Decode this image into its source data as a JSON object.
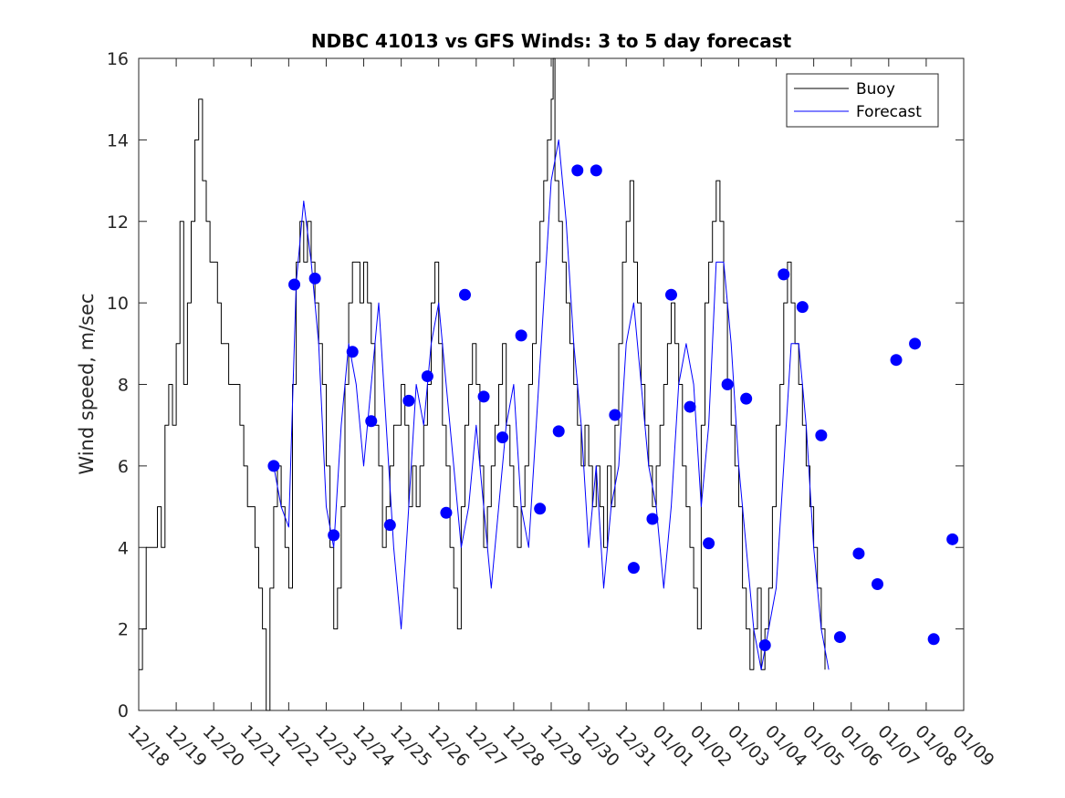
{
  "chart_data": {
    "type": "line",
    "title": "NDBC 41013 vs GFS Winds: 3 to 5 day forecast",
    "xlabel": "",
    "ylabel": "Wind speed, m/sec",
    "xlim": [
      0,
      22
    ],
    "ylim": [
      0,
      16
    ],
    "yticks": [
      0,
      2,
      4,
      6,
      8,
      10,
      12,
      14,
      16
    ],
    "x_ticks": [
      0,
      1,
      2,
      3,
      4,
      5,
      6,
      7,
      8,
      9,
      10,
      11,
      12,
      13,
      14,
      15,
      16,
      17,
      18,
      19,
      20,
      21,
      22
    ],
    "x_tick_labels": [
      "12/18",
      "12/19",
      "12/20",
      "12/21",
      "12/22",
      "12/23",
      "12/24",
      "12/25",
      "12/26",
      "12/27",
      "12/28",
      "12/29",
      "12/30",
      "12/31",
      "01/01",
      "01/02",
      "01/03",
      "01/04",
      "01/05",
      "01/06",
      "01/07",
      "01/08",
      "01/09"
    ],
    "legend": {
      "position": "top-right",
      "entries": [
        {
          "name": "Buoy",
          "color": "#000000"
        },
        {
          "name": "Forecast",
          "color": "#0000ff"
        }
      ]
    },
    "series": [
      {
        "name": "Buoy",
        "color": "#000000",
        "style": "step",
        "points": [
          [
            0.0,
            1
          ],
          [
            0.1,
            2
          ],
          [
            0.2,
            4
          ],
          [
            0.4,
            4
          ],
          [
            0.5,
            5
          ],
          [
            0.6,
            4
          ],
          [
            0.7,
            7
          ],
          [
            0.8,
            8
          ],
          [
            0.9,
            7
          ],
          [
            1.0,
            9
          ],
          [
            1.1,
            12
          ],
          [
            1.2,
            8
          ],
          [
            1.3,
            10
          ],
          [
            1.4,
            12
          ],
          [
            1.5,
            14
          ],
          [
            1.6,
            15
          ],
          [
            1.7,
            13
          ],
          [
            1.8,
            12
          ],
          [
            1.9,
            11
          ],
          [
            2.0,
            11
          ],
          [
            2.1,
            10
          ],
          [
            2.2,
            9
          ],
          [
            2.3,
            9
          ],
          [
            2.4,
            8
          ],
          [
            2.5,
            8
          ],
          [
            2.6,
            8
          ],
          [
            2.7,
            7
          ],
          [
            2.8,
            6
          ],
          [
            2.9,
            5
          ],
          [
            3.0,
            5
          ],
          [
            3.1,
            4
          ],
          [
            3.2,
            3
          ],
          [
            3.3,
            2
          ],
          [
            3.4,
            0
          ],
          [
            3.5,
            3
          ],
          [
            3.6,
            5
          ],
          [
            3.7,
            6
          ],
          [
            3.8,
            5
          ],
          [
            3.9,
            4
          ],
          [
            4.0,
            3
          ],
          [
            4.1,
            8
          ],
          [
            4.2,
            11
          ],
          [
            4.3,
            12
          ],
          [
            4.4,
            11
          ],
          [
            4.5,
            12
          ],
          [
            4.6,
            11
          ],
          [
            4.7,
            10
          ],
          [
            4.8,
            9
          ],
          [
            4.9,
            8
          ],
          [
            5.0,
            6
          ],
          [
            5.1,
            4
          ],
          [
            5.2,
            2
          ],
          [
            5.3,
            3
          ],
          [
            5.4,
            5
          ],
          [
            5.5,
            8
          ],
          [
            5.6,
            10
          ],
          [
            5.7,
            11
          ],
          [
            5.8,
            11
          ],
          [
            5.9,
            10
          ],
          [
            6.0,
            11
          ],
          [
            6.1,
            10
          ],
          [
            6.2,
            9
          ],
          [
            6.3,
            7
          ],
          [
            6.4,
            6
          ],
          [
            6.5,
            4
          ],
          [
            6.6,
            5
          ],
          [
            6.7,
            6
          ],
          [
            6.8,
            7
          ],
          [
            6.9,
            7
          ],
          [
            7.0,
            8
          ],
          [
            7.1,
            7
          ],
          [
            7.2,
            5
          ],
          [
            7.3,
            6
          ],
          [
            7.4,
            5
          ],
          [
            7.5,
            6
          ],
          [
            7.6,
            7
          ],
          [
            7.7,
            8
          ],
          [
            7.8,
            10
          ],
          [
            7.9,
            11
          ],
          [
            8.0,
            9
          ],
          [
            8.1,
            7
          ],
          [
            8.2,
            6
          ],
          [
            8.3,
            4
          ],
          [
            8.4,
            3
          ],
          [
            8.5,
            2
          ],
          [
            8.6,
            5
          ],
          [
            8.7,
            7
          ],
          [
            8.8,
            8
          ],
          [
            8.9,
            9
          ],
          [
            9.0,
            8
          ],
          [
            9.1,
            6
          ],
          [
            9.2,
            4
          ],
          [
            9.3,
            5
          ],
          [
            9.4,
            6
          ],
          [
            9.5,
            7
          ],
          [
            9.6,
            8
          ],
          [
            9.7,
            9
          ],
          [
            9.8,
            7
          ],
          [
            9.9,
            6
          ],
          [
            10.0,
            5
          ],
          [
            10.1,
            4
          ],
          [
            10.2,
            5
          ],
          [
            10.3,
            6
          ],
          [
            10.4,
            8
          ],
          [
            10.5,
            9
          ],
          [
            10.6,
            11
          ],
          [
            10.7,
            12
          ],
          [
            10.8,
            13
          ],
          [
            10.9,
            14
          ],
          [
            11.0,
            15
          ],
          [
            11.05,
            16
          ],
          [
            11.1,
            13
          ],
          [
            11.2,
            12
          ],
          [
            11.3,
            11
          ],
          [
            11.4,
            10
          ],
          [
            11.5,
            9
          ],
          [
            11.6,
            8
          ],
          [
            11.7,
            7
          ],
          [
            11.8,
            6
          ],
          [
            11.9,
            7
          ],
          [
            12.0,
            6
          ],
          [
            12.1,
            5
          ],
          [
            12.2,
            6
          ],
          [
            12.3,
            5
          ],
          [
            12.4,
            4
          ],
          [
            12.5,
            6
          ],
          [
            12.6,
            5
          ],
          [
            12.7,
            7
          ],
          [
            12.8,
            9
          ],
          [
            12.9,
            11
          ],
          [
            13.0,
            12
          ],
          [
            13.1,
            13
          ],
          [
            13.2,
            11
          ],
          [
            13.3,
            10
          ],
          [
            13.4,
            8
          ],
          [
            13.5,
            7
          ],
          [
            13.6,
            6
          ],
          [
            13.7,
            5
          ],
          [
            13.8,
            6
          ],
          [
            13.9,
            7
          ],
          [
            14.0,
            8
          ],
          [
            14.1,
            9
          ],
          [
            14.2,
            10
          ],
          [
            14.3,
            9
          ],
          [
            14.4,
            8
          ],
          [
            14.5,
            6
          ],
          [
            14.6,
            5
          ],
          [
            14.7,
            4
          ],
          [
            14.8,
            3
          ],
          [
            14.9,
            2
          ],
          [
            15.0,
            7
          ],
          [
            15.1,
            10
          ],
          [
            15.2,
            11
          ],
          [
            15.3,
            12
          ],
          [
            15.4,
            13
          ],
          [
            15.5,
            12
          ],
          [
            15.6,
            10
          ],
          [
            15.7,
            8
          ],
          [
            15.8,
            7
          ],
          [
            15.9,
            6
          ],
          [
            16.0,
            5
          ],
          [
            16.1,
            3
          ],
          [
            16.2,
            2
          ],
          [
            16.3,
            1
          ],
          [
            16.4,
            2
          ],
          [
            16.5,
            3
          ],
          [
            16.6,
            1
          ],
          [
            16.7,
            2
          ],
          [
            16.8,
            3
          ],
          [
            16.9,
            5
          ],
          [
            17.0,
            7
          ],
          [
            17.1,
            8
          ],
          [
            17.2,
            10
          ],
          [
            17.3,
            11
          ],
          [
            17.4,
            10
          ],
          [
            17.5,
            9
          ],
          [
            17.6,
            8
          ],
          [
            17.7,
            7
          ],
          [
            17.8,
            6
          ],
          [
            17.9,
            5
          ],
          [
            18.0,
            4
          ],
          [
            18.1,
            3
          ],
          [
            18.2,
            2
          ],
          [
            18.3,
            1
          ]
        ]
      },
      {
        "name": "Forecast",
        "color": "#0000ff",
        "style": "line",
        "points": [
          [
            3.6,
            6
          ],
          [
            3.8,
            5
          ],
          [
            4.0,
            4.5
          ],
          [
            4.2,
            10.5
          ],
          [
            4.4,
            12.5
          ],
          [
            4.6,
            11
          ],
          [
            4.8,
            9
          ],
          [
            5.0,
            5
          ],
          [
            5.2,
            4
          ],
          [
            5.4,
            7
          ],
          [
            5.6,
            9
          ],
          [
            5.8,
            8
          ],
          [
            6.0,
            6
          ],
          [
            6.2,
            8
          ],
          [
            6.4,
            10
          ],
          [
            6.6,
            7
          ],
          [
            6.8,
            4
          ],
          [
            7.0,
            2
          ],
          [
            7.2,
            5
          ],
          [
            7.4,
            8
          ],
          [
            7.6,
            7
          ],
          [
            7.8,
            9
          ],
          [
            8.0,
            10
          ],
          [
            8.2,
            8
          ],
          [
            8.4,
            6
          ],
          [
            8.6,
            4
          ],
          [
            8.8,
            5
          ],
          [
            9.0,
            7
          ],
          [
            9.2,
            5
          ],
          [
            9.4,
            3
          ],
          [
            9.6,
            5
          ],
          [
            9.8,
            7
          ],
          [
            10.0,
            8
          ],
          [
            10.2,
            5
          ],
          [
            10.4,
            4
          ],
          [
            10.6,
            7
          ],
          [
            10.8,
            10
          ],
          [
            11.0,
            13
          ],
          [
            11.2,
            14
          ],
          [
            11.4,
            12
          ],
          [
            11.6,
            9
          ],
          [
            11.8,
            7
          ],
          [
            12.0,
            4
          ],
          [
            12.2,
            6
          ],
          [
            12.4,
            3
          ],
          [
            12.6,
            5
          ],
          [
            12.8,
            6
          ],
          [
            13.0,
            9
          ],
          [
            13.2,
            10
          ],
          [
            13.4,
            8
          ],
          [
            13.6,
            6
          ],
          [
            13.8,
            5
          ],
          [
            14.0,
            3
          ],
          [
            14.2,
            5
          ],
          [
            14.4,
            8
          ],
          [
            14.6,
            9
          ],
          [
            14.8,
            8
          ],
          [
            15.0,
            5
          ],
          [
            15.2,
            7
          ],
          [
            15.4,
            11
          ],
          [
            15.6,
            11
          ],
          [
            15.8,
            9
          ],
          [
            16.0,
            6
          ],
          [
            16.2,
            4
          ],
          [
            16.4,
            2
          ],
          [
            16.6,
            1
          ],
          [
            16.8,
            2
          ],
          [
            17.0,
            3
          ],
          [
            17.2,
            6
          ],
          [
            17.4,
            9
          ],
          [
            17.6,
            9
          ],
          [
            17.8,
            7
          ],
          [
            18.0,
            4
          ],
          [
            18.2,
            2
          ],
          [
            18.4,
            1
          ]
        ]
      }
    ],
    "forecast_markers": [
      [
        3.6,
        6
      ],
      [
        4.15,
        10.45
      ],
      [
        4.7,
        10.6
      ],
      [
        5.2,
        4.3
      ],
      [
        5.7,
        8.8
      ],
      [
        6.2,
        7.1
      ],
      [
        6.7,
        4.55
      ],
      [
        7.2,
        7.6
      ],
      [
        7.7,
        8.2
      ],
      [
        8.2,
        4.85
      ],
      [
        8.7,
        10.2
      ],
      [
        9.2,
        7.7
      ],
      [
        9.7,
        6.7
      ],
      [
        10.2,
        9.2
      ],
      [
        10.7,
        4.95
      ],
      [
        11.2,
        6.85
      ],
      [
        11.7,
        13.25
      ],
      [
        12.2,
        13.25
      ],
      [
        12.7,
        7.25
      ],
      [
        13.2,
        3.5
      ],
      [
        13.7,
        4.7
      ],
      [
        14.2,
        10.2
      ],
      [
        14.7,
        7.45
      ],
      [
        15.2,
        4.1
      ],
      [
        15.7,
        8.0
      ],
      [
        16.2,
        7.65
      ],
      [
        16.7,
        1.6
      ],
      [
        17.2,
        10.7
      ],
      [
        17.7,
        9.9
      ],
      [
        18.2,
        6.75
      ],
      [
        18.7,
        1.8
      ],
      [
        19.2,
        3.85
      ],
      [
        19.7,
        3.1
      ],
      [
        20.2,
        8.6
      ],
      [
        20.7,
        9.0
      ],
      [
        21.2,
        1.75
      ],
      [
        21.7,
        4.2
      ]
    ]
  }
}
